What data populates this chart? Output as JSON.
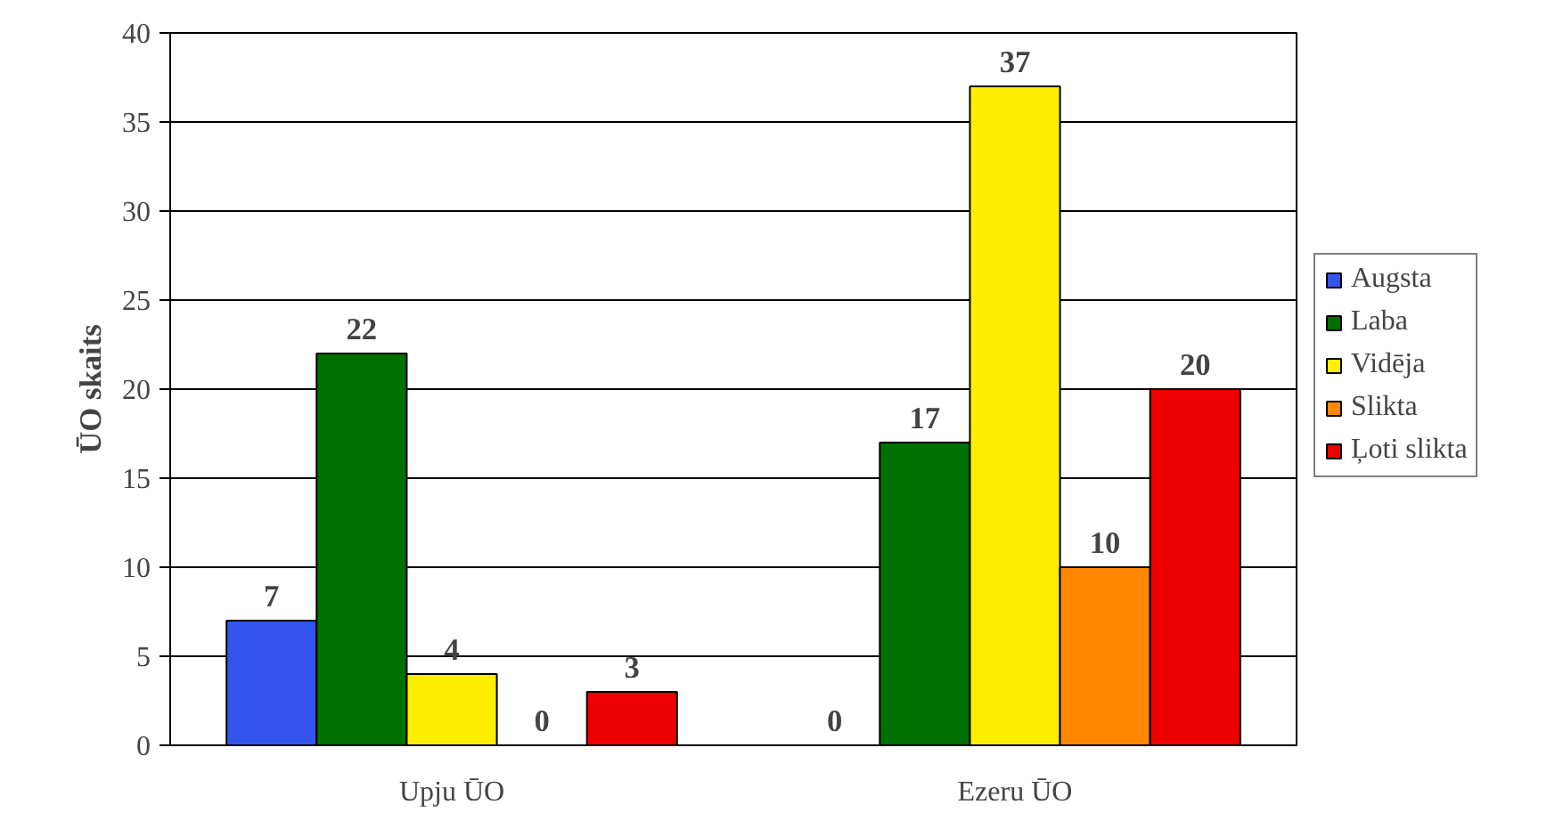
{
  "chart_data": {
    "type": "bar",
    "ylabel": "ŪO skaits",
    "categories": [
      "Upju ŪO",
      "Ezeru ŪO"
    ],
    "series": [
      {
        "name": "Augsta",
        "color": "#3355ee",
        "values": [
          7,
          0
        ]
      },
      {
        "name": "Laba",
        "color": "#007000",
        "values": [
          22,
          17
        ]
      },
      {
        "name": "Vidēja",
        "color": "#ffee00",
        "values": [
          4,
          37
        ]
      },
      {
        "name": "Slikta",
        "color": "#ff8800",
        "values": [
          0,
          10
        ]
      },
      {
        "name": "Ļoti slikta",
        "color": "#ee0000",
        "values": [
          3,
          20
        ]
      }
    ],
    "ylim": [
      0,
      40
    ],
    "yticks": [
      0,
      5,
      10,
      15,
      20,
      25,
      30,
      35,
      40
    ],
    "grid": "y",
    "legend": "right",
    "data_labels": true
  }
}
